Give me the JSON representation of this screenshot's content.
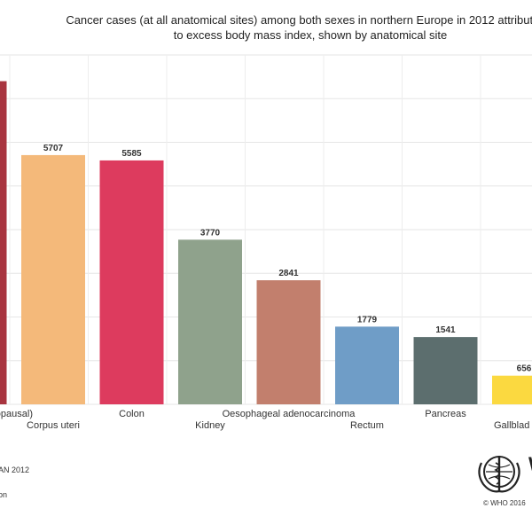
{
  "chart_data": {
    "type": "bar",
    "title_lines": [
      "Cancer cases (at all anatomical sites) among both sexes in northern Europe in 2012 attributable",
      "to excess body mass index, shown by anatomical site"
    ],
    "categories": [
      "Breast (postmenopausal)",
      "Corpus uteri",
      "Colon",
      "Kidney",
      "Oesophageal adenocarcinoma",
      "Rectum",
      "Pancreas",
      "Gallbladder"
    ],
    "visible_category_labels": [
      "(postmenopausal)",
      "Corpus uteri",
      "Colon",
      "Kidney",
      "Oesophageal adenocarcinoma",
      "Rectum",
      "Pancreas",
      "Gallblad"
    ],
    "values": [
      7400,
      5707,
      5585,
      3770,
      2841,
      1779,
      1541,
      656
    ],
    "value_labels": [
      "",
      "5707",
      "5585",
      "3770",
      "2841",
      "1779",
      "1541",
      "656"
    ],
    "colors": [
      "#a8343f",
      "#f4b97a",
      "#dd3b5e",
      "#8fa28c",
      "#c27f6d",
      "#6f9dc7",
      "#5c6e6e",
      "#fbd940"
    ],
    "ylim": [
      0,
      8000
    ],
    "grid": true,
    "xlabel": "",
    "ylabel": ""
  },
  "footer": {
    "source_line": "AN 2012",
    "credit_line": "on",
    "copyright": "© WHO 2016",
    "logo_letters": "W"
  }
}
